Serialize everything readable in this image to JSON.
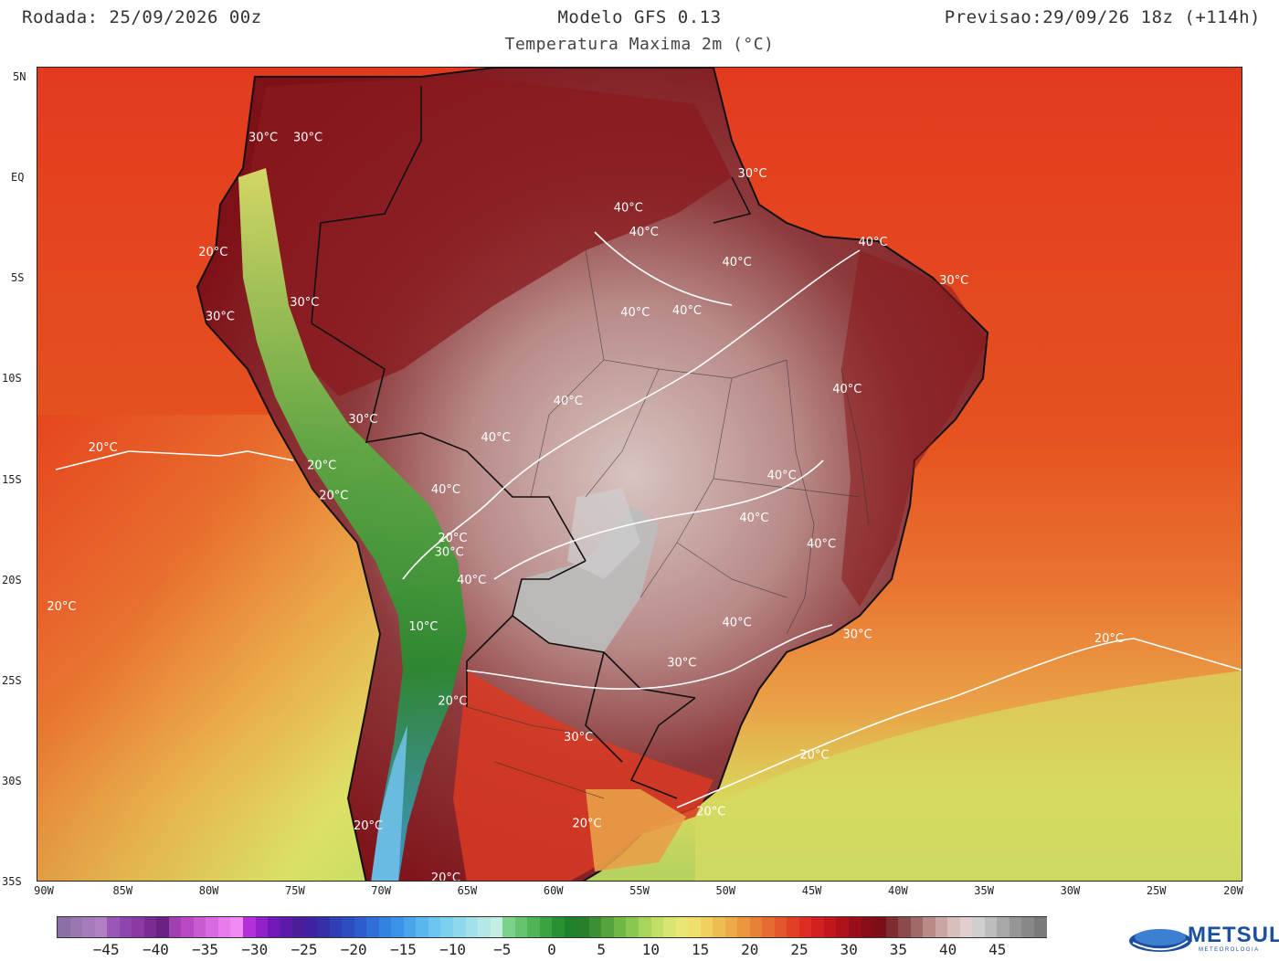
{
  "header": {
    "run": "Rodada: 25/09/2026 00z",
    "model": "Modelo GFS 0.13",
    "forecast": "Previsao:29/09/26 18z (+114h)",
    "subtitle": "Temperatura Maxima 2m (°C)"
  },
  "map": {
    "lat_labels": [
      "5N",
      "EQ",
      "5S",
      "10S",
      "15S",
      "20S",
      "25S",
      "30S",
      "35S"
    ],
    "lon_labels": [
      "90W",
      "85W",
      "80W",
      "75W",
      "70W",
      "65W",
      "60W",
      "55W",
      "50W",
      "45W",
      "40W",
      "35W",
      "30W",
      "25W",
      "20W"
    ],
    "isotherm_labels": [
      {
        "text": "30°C",
        "lon": -76.9,
        "lat": 2.0
      },
      {
        "text": "30°C",
        "lon": -74.3,
        "lat": 2.0
      },
      {
        "text": "30°C",
        "lon": -48.5,
        "lat": 0.2
      },
      {
        "text": "40°C",
        "lon": -55.7,
        "lat": -1.5
      },
      {
        "text": "40°C",
        "lon": -54.8,
        "lat": -2.7
      },
      {
        "text": "40°C",
        "lon": -41.5,
        "lat": -3.2
      },
      {
        "text": "40°C",
        "lon": -49.4,
        "lat": -4.2
      },
      {
        "text": "30°C",
        "lon": -36.8,
        "lat": -5.1
      },
      {
        "text": "20°C",
        "lon": -79.8,
        "lat": -3.7
      },
      {
        "text": "30°C",
        "lon": -74.5,
        "lat": -6.2
      },
      {
        "text": "30°C",
        "lon": -79.4,
        "lat": -6.9
      },
      {
        "text": "40°C",
        "lon": -55.3,
        "lat": -6.7
      },
      {
        "text": "40°C",
        "lon": -52.3,
        "lat": -6.6
      },
      {
        "text": "40°C",
        "lon": -43.0,
        "lat": -10.5
      },
      {
        "text": "40°C",
        "lon": -59.2,
        "lat": -11.1
      },
      {
        "text": "30°C",
        "lon": -71.1,
        "lat": -12.0
      },
      {
        "text": "40°C",
        "lon": -63.4,
        "lat": -12.9
      },
      {
        "text": "20°C",
        "lon": -86.2,
        "lat": -13.4
      },
      {
        "text": "20°C",
        "lon": -73.5,
        "lat": -14.3
      },
      {
        "text": "40°C",
        "lon": -46.8,
        "lat": -14.8
      },
      {
        "text": "20°C",
        "lon": -72.8,
        "lat": -15.8
      },
      {
        "text": "40°C",
        "lon": -66.3,
        "lat": -15.5
      },
      {
        "text": "40°C",
        "lon": -48.4,
        "lat": -16.9
      },
      {
        "text": "20°C",
        "lon": -65.9,
        "lat": -17.9
      },
      {
        "text": "30°C",
        "lon": -66.1,
        "lat": -18.6
      },
      {
        "text": "40°C",
        "lon": -44.5,
        "lat": -18.2
      },
      {
        "text": "40°C",
        "lon": -64.8,
        "lat": -20.0
      },
      {
        "text": "20°C",
        "lon": -88.6,
        "lat": -21.3
      },
      {
        "text": "10°C",
        "lon": -67.6,
        "lat": -22.3
      },
      {
        "text": "40°C",
        "lon": -49.4,
        "lat": -22.1
      },
      {
        "text": "30°C",
        "lon": -42.4,
        "lat": -22.7
      },
      {
        "text": "20°C",
        "lon": -27.8,
        "lat": -22.9
      },
      {
        "text": "30°C",
        "lon": -52.6,
        "lat": -24.1
      },
      {
        "text": "20°C",
        "lon": -65.9,
        "lat": -26.0
      },
      {
        "text": "30°C",
        "lon": -58.6,
        "lat": -27.8
      },
      {
        "text": "20°C",
        "lon": -44.9,
        "lat": -28.7
      },
      {
        "text": "20°C",
        "lon": -50.9,
        "lat": -31.5
      },
      {
        "text": "20°C",
        "lon": -58.1,
        "lat": -32.1
      },
      {
        "text": "20°C",
        "lon": -70.8,
        "lat": -32.2
      },
      {
        "text": "20°C",
        "lon": -66.3,
        "lat": -34.8
      }
    ]
  },
  "colorbar": {
    "labels": [
      "-45",
      "-40",
      "-35",
      "-30",
      "-25",
      "-20",
      "-15",
      "-10",
      "-5",
      "0",
      "5",
      "10",
      "15",
      "20",
      "25",
      "30",
      "35",
      "40",
      "45"
    ],
    "min": -50,
    "max": 50,
    "colors": [
      "#8c6fa8",
      "#9a77b2",
      "#a57cbb",
      "#b07fc4",
      "#9b57b8",
      "#8d46ad",
      "#8a3aa3",
      "#7a2a90",
      "#6a2183",
      "#a040b0",
      "#b948c4",
      "#c85ad2",
      "#d76ae0",
      "#e87cee",
      "#f08af3",
      "#b130d8",
      "#9120c8",
      "#7019b8",
      "#5c1aa8",
      "#4c1d98",
      "#3f22a0",
      "#3630a8",
      "#2f3fb4",
      "#2c4cc0",
      "#2d5dcc",
      "#2f6fd6",
      "#3381e0",
      "#3a93e6",
      "#48a5ea",
      "#5ab6ee",
      "#6cc4ef",
      "#7dcfee",
      "#8fd8ec",
      "#a2e1ea",
      "#b3e8e6",
      "#c4eee2",
      "#7cd28a",
      "#66c46f",
      "#4fb456",
      "#3aa241",
      "#2a9132",
      "#1f8129",
      "#287f2a",
      "#3c9034",
      "#55a33d",
      "#6fb747",
      "#8ac752",
      "#a6d45c",
      "#c2de66",
      "#d8e56f",
      "#e8e774",
      "#efde6a",
      "#efcf5e",
      "#edbd52",
      "#ebaa48",
      "#e9963f",
      "#e78137",
      "#e56b30",
      "#e3552a",
      "#e04026",
      "#dd2d22",
      "#d21f1f",
      "#c0161c",
      "#ad111a",
      "#990e18",
      "#870c17",
      "#7a0f18",
      "#7f2c30",
      "#8d4a4c",
      "#a06a6a",
      "#b88a88",
      "#c9a6a3",
      "#d8bfbc",
      "#e0cfcc",
      "#cfcfcf",
      "#bdbdbd",
      "#a8a8a8",
      "#969696",
      "#888888",
      "#7a7a7a"
    ]
  },
  "logo": {
    "text": "METSUL",
    "sub": "METEOROLOGIA"
  },
  "colors": {
    "land_outline": "#111111",
    "isotherm": "#ffffff",
    "ocean_hot": "#e2361e"
  }
}
